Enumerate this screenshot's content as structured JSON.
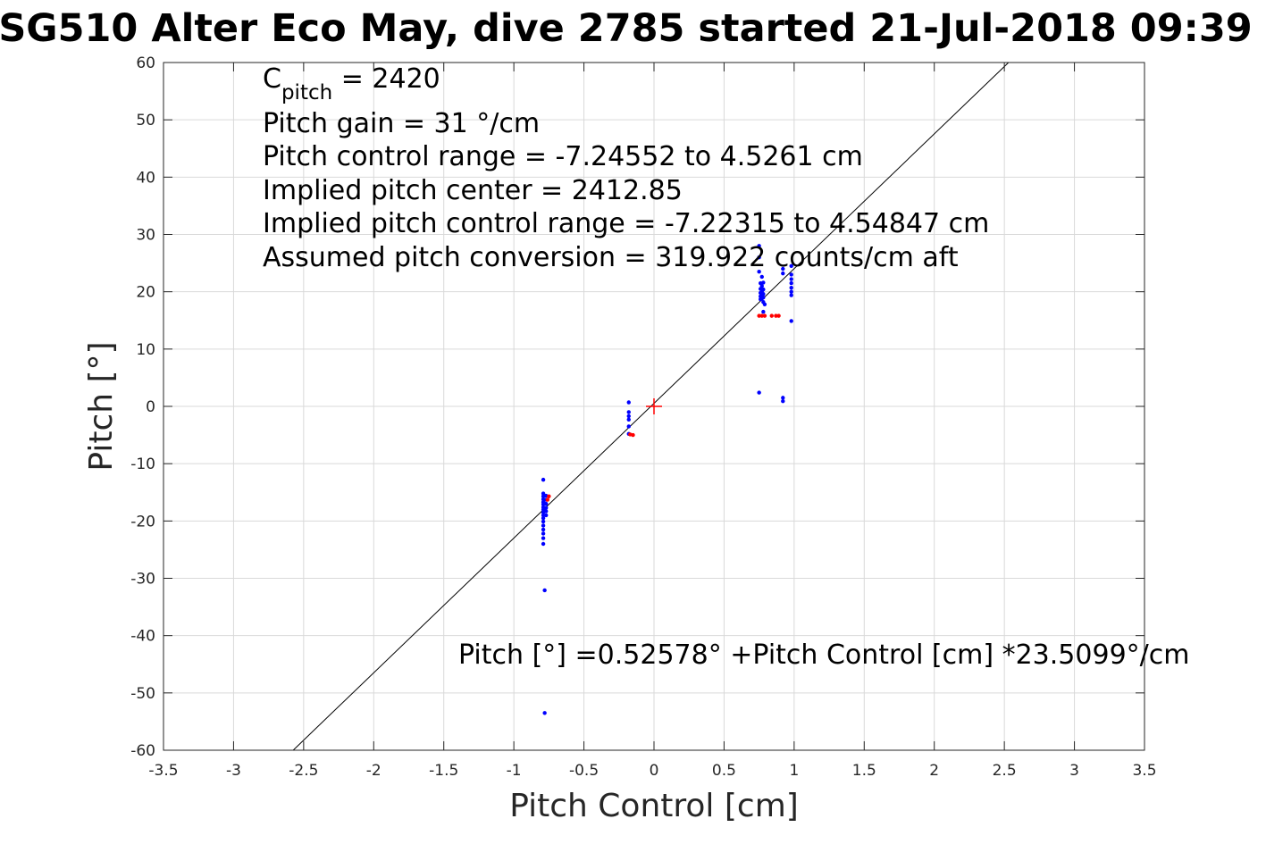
{
  "chart_data": {
    "type": "scatter",
    "title": "SG510 Alter Eco May, dive 2785 started 21-Jul-2018 09:39",
    "xlabel": "Pitch Control [cm]",
    "ylabel": "Pitch [°]",
    "xlim": [
      -3.5,
      3.5
    ],
    "ylim": [
      -60,
      60
    ],
    "xticks": [
      -3.5,
      -3,
      -2.5,
      -2,
      -1.5,
      -1,
      -0.5,
      0,
      0.5,
      1,
      1.5,
      2,
      2.5,
      3,
      3.5
    ],
    "yticks": [
      -60,
      -50,
      -40,
      -30,
      -20,
      -10,
      0,
      10,
      20,
      30,
      40,
      50,
      60
    ],
    "grid": true,
    "annotations": {
      "cpitch_base": "C",
      "cpitch_sub": "pitch",
      "cpitch_value": " = 2420",
      "lines": [
        "Pitch gain = 31 °/cm",
        "Pitch control range = -7.24552 to 4.5261 cm",
        "Implied pitch center = 2412.85",
        "Implied pitch control range = -7.22315 to 4.54847 cm",
        "Assumed pitch conversion = 319.922 counts/cm aft"
      ],
      "fit_equation": "Pitch [°] =0.52578° +Pitch Control [cm] *23.5099°/cm"
    },
    "fit_line": {
      "intercept": 0.52578,
      "slope": 23.5099
    },
    "center_marker": {
      "x": 0,
      "y": 0,
      "color": "#ff0000"
    },
    "series": [
      {
        "color": "#0000ff",
        "points": [
          [
            -0.79,
            -12.8
          ],
          [
            -0.79,
            -15.2
          ],
          [
            -0.79,
            -15.7
          ],
          [
            -0.79,
            -16.2
          ],
          [
            -0.79,
            -16.7
          ],
          [
            -0.79,
            -17.1
          ],
          [
            -0.79,
            -17.6
          ],
          [
            -0.79,
            -18.0
          ],
          [
            -0.79,
            -18.5
          ],
          [
            -0.79,
            -19.0
          ],
          [
            -0.79,
            -19.5
          ],
          [
            -0.79,
            -20.1
          ],
          [
            -0.79,
            -20.8
          ],
          [
            -0.79,
            -21.5
          ],
          [
            -0.79,
            -22.2
          ],
          [
            -0.79,
            -23.0
          ],
          [
            -0.79,
            -24.0
          ],
          [
            -0.77,
            -15.6
          ],
          [
            -0.77,
            -16.3
          ],
          [
            -0.77,
            -17.0
          ],
          [
            -0.77,
            -17.7
          ],
          [
            -0.77,
            -18.3
          ],
          [
            -0.77,
            -19.0
          ],
          [
            -0.78,
            -32.1
          ],
          [
            -0.78,
            -53.5
          ],
          [
            -0.18,
            0.7
          ],
          [
            -0.18,
            -1.0
          ],
          [
            -0.18,
            -1.7
          ],
          [
            -0.18,
            -2.3
          ],
          [
            -0.18,
            -3.5
          ],
          [
            -0.18,
            -4.8
          ],
          [
            0.75,
            2.4
          ],
          [
            0.75,
            28.0
          ],
          [
            0.75,
            26.0
          ],
          [
            0.75,
            23.5
          ],
          [
            0.76,
            21.5
          ],
          [
            0.76,
            20.5
          ],
          [
            0.76,
            19.8
          ],
          [
            0.76,
            19.2
          ],
          [
            0.76,
            18.7
          ],
          [
            0.77,
            22.6
          ],
          [
            0.77,
            21.0
          ],
          [
            0.77,
            20.0
          ],
          [
            0.77,
            19.4
          ],
          [
            0.77,
            18.8
          ],
          [
            0.78,
            21.6
          ],
          [
            0.78,
            20.4
          ],
          [
            0.78,
            19.6
          ],
          [
            0.78,
            19.0
          ],
          [
            0.78,
            18.2
          ],
          [
            0.78,
            16.5
          ],
          [
            0.79,
            17.8
          ],
          [
            0.92,
            24.0
          ],
          [
            0.92,
            23.2
          ],
          [
            0.92,
            1.5
          ],
          [
            0.92,
            0.9
          ],
          [
            0.98,
            24.5
          ],
          [
            0.98,
            23.0
          ],
          [
            0.98,
            22.2
          ],
          [
            0.98,
            21.5
          ],
          [
            0.98,
            20.7
          ],
          [
            0.98,
            20.0
          ],
          [
            0.98,
            19.4
          ],
          [
            0.98,
            14.9
          ]
        ]
      },
      {
        "color": "#ff0000",
        "points": [
          [
            -0.75,
            -15.7
          ],
          [
            -0.76,
            -16.3
          ],
          [
            -0.15,
            -5.0
          ],
          [
            -0.17,
            -4.9
          ],
          [
            0.75,
            15.8
          ],
          [
            0.77,
            15.8
          ],
          [
            0.79,
            15.8
          ],
          [
            0.84,
            15.8
          ],
          [
            0.87,
            15.8
          ],
          [
            0.89,
            15.8
          ]
        ]
      }
    ]
  }
}
